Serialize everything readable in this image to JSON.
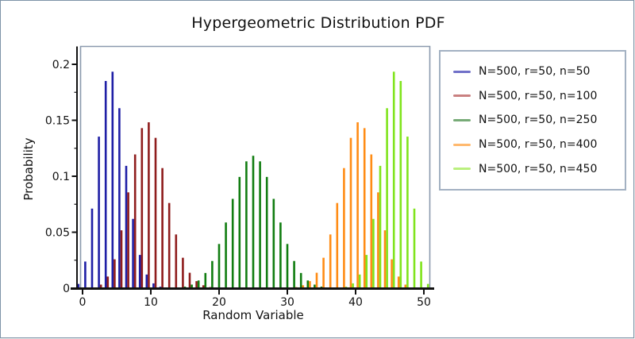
{
  "window": {
    "background": "#ffffff",
    "border_color": "#7e93a7"
  },
  "chart_data": {
    "type": "bar",
    "title": "Hypergeometric Distribution PDF",
    "xlabel": "Random Variable",
    "ylabel": "Probability",
    "xlim": [
      -1,
      51
    ],
    "ylim": [
      0,
      0.216
    ],
    "grid": false,
    "legend_position": "right-outside",
    "axis_color": "#111111",
    "frame_color": "#8a99ad",
    "x_ticks": [
      {
        "v": 0,
        "label": "0"
      },
      {
        "v": 10,
        "label": "10"
      },
      {
        "v": 20,
        "label": "20"
      },
      {
        "v": 30,
        "label": "30"
      },
      {
        "v": 40,
        "label": "40"
      },
      {
        "v": 50,
        "label": "50"
      }
    ],
    "y_ticks": [
      {
        "v": 0,
        "label": "0"
      },
      {
        "v": 0.05,
        "label": "0.05"
      },
      {
        "v": 0.1,
        "label": "0.1"
      },
      {
        "v": 0.15,
        "label": "0.15"
      },
      {
        "v": 0.2,
        "label": "0.2"
      }
    ],
    "y_minor_ticks": [
      0.025,
      0.075,
      0.125,
      0.175
    ],
    "series": [
      {
        "name": "N=500, r=50, n=50",
        "color": "#1f1fa6",
        "legend_color": "#7070c8",
        "x_start": 0,
        "values": [
          0.0038,
          0.0238,
          0.0711,
          0.1354,
          0.1851,
          0.1934,
          0.1608,
          0.1093,
          0.0619,
          0.0297,
          0.0122,
          0.0043,
          0.0013,
          0.0004
        ]
      },
      {
        "name": "N=500, r=50, n=100",
        "color": "#8f1d1d",
        "legend_color": "#c98080",
        "x_start": 2,
        "values": [
          0.0007,
          0.0032,
          0.0104,
          0.0258,
          0.0517,
          0.0856,
          0.1195,
          0.143,
          0.1482,
          0.1343,
          0.1073,
          0.0761,
          0.048,
          0.0272,
          0.0138,
          0.0063,
          0.0026,
          0.001,
          0.0003
        ]
      },
      {
        "name": "N=500, r=50, n=250",
        "color": "#117d11",
        "legend_color": "#77ab77",
        "x_start": 14,
        "values": [
          0.0005,
          0.0014,
          0.0032,
          0.0069,
          0.0136,
          0.0243,
          0.0395,
          0.0587,
          0.0798,
          0.0994,
          0.1133,
          0.1183,
          0.1133,
          0.0994,
          0.0798,
          0.0587,
          0.0395,
          0.0243,
          0.0136,
          0.0069,
          0.0032,
          0.0014,
          0.0005
        ]
      },
      {
        "name": "N=500, r=50, n=400",
        "color": "#ff8c15",
        "legend_color": "#ffb96e",
        "x_start": 30,
        "values": [
          0.0003,
          0.001,
          0.0026,
          0.0063,
          0.0138,
          0.0272,
          0.048,
          0.0761,
          0.1073,
          0.1343,
          0.1482,
          0.143,
          0.1195,
          0.0856,
          0.0517,
          0.0258,
          0.0104,
          0.0032,
          0.0007
        ]
      },
      {
        "name": "N=500, r=50, n=450",
        "color": "#80e41c",
        "legend_color": "#baf07e",
        "x_start": 37,
        "values": [
          0.0004,
          0.0013,
          0.0043,
          0.0122,
          0.0297,
          0.0619,
          0.1093,
          0.1608,
          0.1934,
          0.1851,
          0.1354,
          0.0711,
          0.0238,
          0.0038
        ]
      }
    ]
  },
  "legend": {
    "border_color": "#a3b1c2"
  }
}
